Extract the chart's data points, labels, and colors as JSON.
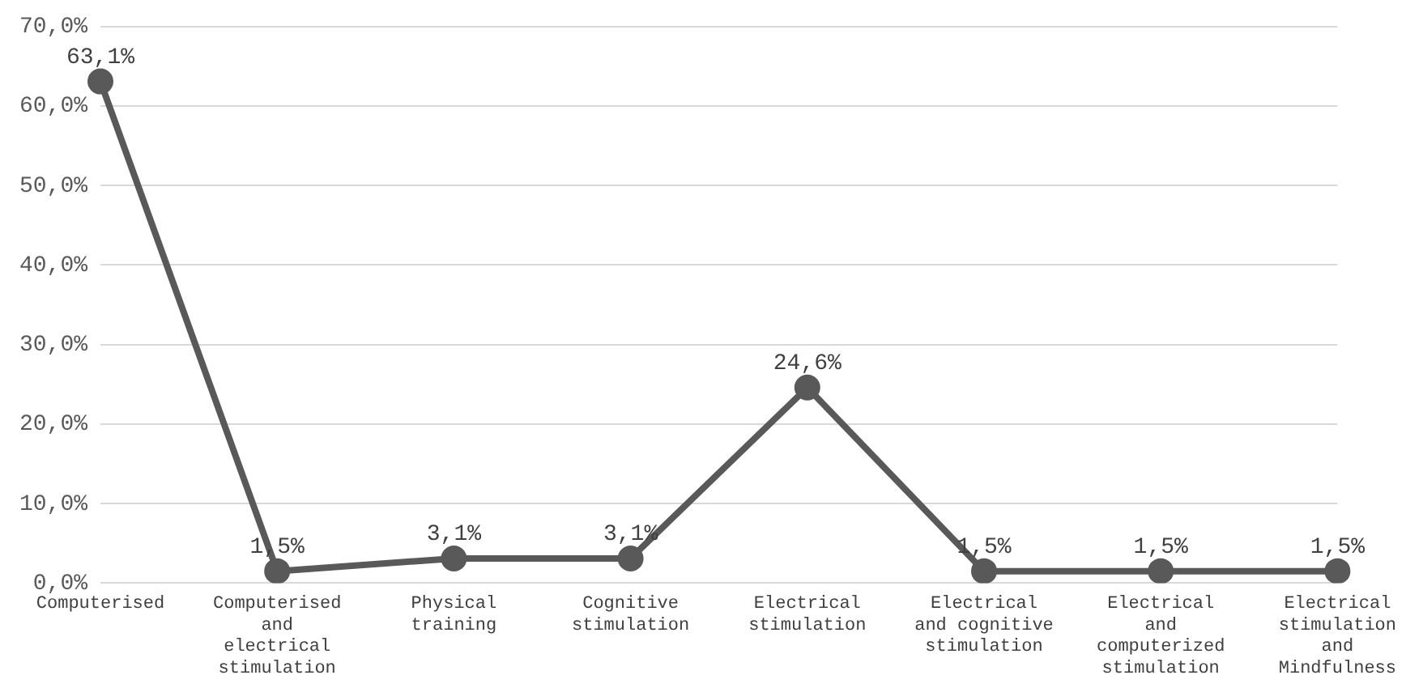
{
  "chart_data": {
    "type": "line",
    "categories": [
      "Computerised",
      "Computerised and electrical stimulation",
      "Physical training",
      "Cognitive stimulation",
      "Electrical stimulation",
      "Electrical and cognitive stimulation",
      "Electrical and computerized stimulation",
      "Electrical stimulation and Mindfulness"
    ],
    "values": [
      63.1,
      1.5,
      3.1,
      3.1,
      24.6,
      1.5,
      1.5,
      1.5
    ],
    "value_labels": [
      "63,1%",
      "1,5%",
      "3,1%",
      "3,1%",
      "24,6%",
      "1,5%",
      "1,5%",
      "1,5%"
    ],
    "color": "#595959",
    "marker": "circle",
    "line_style": "solid",
    "ylim": [
      0,
      70
    ],
    "yticks": [
      {
        "value": 0,
        "label": "0,0%"
      },
      {
        "value": 10,
        "label": "10,0%"
      },
      {
        "value": 20,
        "label": "20,0%"
      },
      {
        "value": 30,
        "label": "30,0%"
      },
      {
        "value": 40,
        "label": "40,0%"
      },
      {
        "value": 50,
        "label": "50,0%"
      },
      {
        "value": 60,
        "label": "60,0%"
      },
      {
        "value": 70,
        "label": "70,0%"
      }
    ],
    "grid": "y",
    "legend": false
  }
}
